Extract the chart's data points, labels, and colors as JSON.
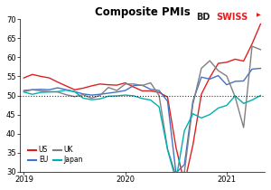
{
  "title": "Composite PMIs",
  "ylim": [
    30,
    70
  ],
  "yticks": [
    30,
    35,
    40,
    45,
    50,
    55,
    60,
    65,
    70
  ],
  "hline_y": 50,
  "background_color": "#ffffff",
  "xtick_positions": [
    0,
    12,
    24
  ],
  "xtick_labels": [
    "2019",
    "2020",
    "2021"
  ],
  "n_points": 29,
  "series": {
    "US": {
      "color": "#e02020",
      "data": [
        54.6,
        55.5,
        55.0,
        54.6,
        53.5,
        52.5,
        51.5,
        51.9,
        52.5,
        53.0,
        52.8,
        52.7,
        53.3,
        52.2,
        51.2,
        51.2,
        50.8,
        49.6,
        36.4,
        27.0,
        37.0,
        50.3,
        54.7,
        58.4,
        58.7,
        59.5,
        59.0,
        63.5,
        68.7
      ]
    },
    "EU": {
      "color": "#4472c4",
      "data": [
        51.3,
        51.5,
        51.6,
        51.5,
        52.0,
        51.5,
        51.0,
        50.4,
        50.1,
        50.3,
        50.6,
        50.9,
        51.3,
        52.6,
        52.7,
        51.6,
        51.3,
        48.5,
        29.7,
        31.9,
        48.5,
        54.8,
        54.3,
        55.2,
        52.8,
        53.7,
        53.8,
        56.9,
        57.1
      ]
    },
    "UK": {
      "color": "#808080",
      "data": [
        51.0,
        51.5,
        51.2,
        51.0,
        50.9,
        50.2,
        49.7,
        50.2,
        49.3,
        50.0,
        52.1,
        51.3,
        53.0,
        53.0,
        52.6,
        53.3,
        50.0,
        36.0,
        28.9,
        30.0,
        47.7,
        57.1,
        59.1,
        56.5,
        55.1,
        49.6,
        41.6,
        62.9,
        62.0
      ]
    },
    "Japan": {
      "color": "#00b0b0",
      "data": [
        50.9,
        50.3,
        50.8,
        50.9,
        51.0,
        51.4,
        51.0,
        49.3,
        48.9,
        49.1,
        49.8,
        49.9,
        50.1,
        49.9,
        49.2,
        48.8,
        47.0,
        35.8,
        27.8,
        40.8,
        45.2,
        44.1,
        45.0,
        46.7,
        47.4,
        49.9,
        47.9,
        48.8,
        50.0
      ]
    }
  },
  "legend_order": [
    "US",
    "EU",
    "UK",
    "Japan"
  ],
  "logo_bd_color": "#222222",
  "logo_swiss_color": "#e02020"
}
